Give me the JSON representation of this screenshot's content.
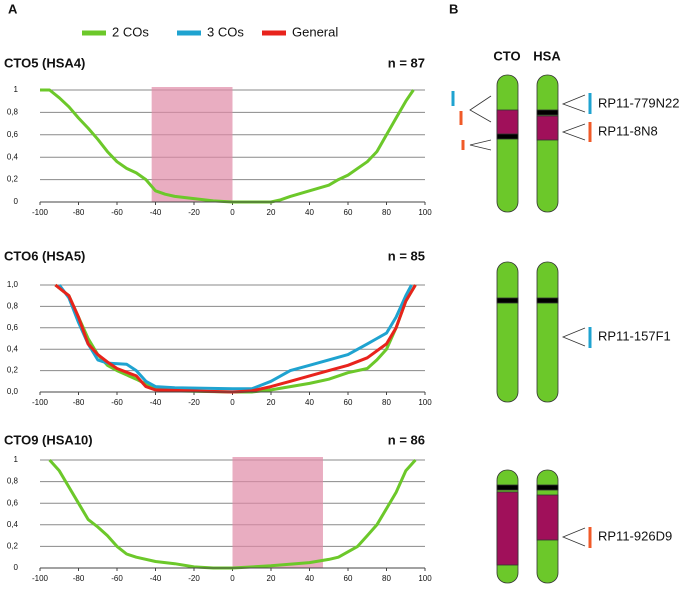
{
  "panel_labels": [
    "A",
    "B"
  ],
  "chart_data": [
    {
      "type": "line",
      "title": "CTO5 (HSA4)",
      "n_label": "n = 87",
      "xlim": [
        -100,
        100
      ],
      "xticks": [
        -100,
        -80,
        -60,
        -40,
        -20,
        0,
        20,
        40,
        60,
        80,
        100
      ],
      "ylim": [
        0,
        1
      ],
      "yticks": [
        0,
        {
          "value": 0.2,
          "label": "0,2"
        },
        {
          "value": 0.4,
          "label": "0,4"
        },
        {
          "value": 0.6,
          "label": "0,6"
        },
        {
          "value": 0.8,
          "label": "0,8"
        },
        1
      ],
      "grid": true,
      "shade": [
        -42,
        0
      ],
      "shade_color": "#e08aa6",
      "series": [
        {
          "name": "2 COs",
          "color": "#6cc82a",
          "x": [
            -100,
            -95,
            -90,
            -85,
            -80,
            -75,
            -70,
            -65,
            -60,
            -55,
            -50,
            -45,
            -40,
            -35,
            -30,
            -20,
            -10,
            0,
            10,
            20,
            25,
            30,
            40,
            50,
            55,
            60,
            70,
            75,
            80,
            85,
            90,
            94
          ],
          "values": [
            1,
            1,
            0.93,
            0.85,
            0.75,
            0.66,
            0.56,
            0.45,
            0.36,
            0.3,
            0.26,
            0.2,
            0.1,
            0.07,
            0.05,
            0.03,
            0.01,
            0,
            0,
            0,
            0.02,
            0.05,
            0.1,
            0.15,
            0.2,
            0.24,
            0.36,
            0.45,
            0.6,
            0.75,
            0.9,
            1
          ]
        }
      ]
    },
    {
      "type": "line",
      "title": "CTO6 (HSA5)",
      "n_label": "n = 85",
      "xlim": [
        -100,
        100
      ],
      "xticks": [
        -100,
        -80,
        -60,
        -40,
        -20,
        0,
        20,
        40,
        60,
        80,
        100
      ],
      "ylim": [
        0,
        1
      ],
      "yticks": [
        {
          "value": 0,
          "label": "0,0"
        },
        {
          "value": 0.2,
          "label": "0,2"
        },
        {
          "value": 0.4,
          "label": "0,4"
        },
        {
          "value": 0.6,
          "label": "0,6"
        },
        {
          "value": 0.8,
          "label": "0,8"
        },
        {
          "value": 1,
          "label": "1,0"
        }
      ],
      "grid": true,
      "series": [
        {
          "name": "2 COs",
          "color": "#6cc82a",
          "x": [
            -92,
            -85,
            -80,
            -75,
            -70,
            -65,
            -60,
            -50,
            -40,
            -30,
            0,
            10,
            20,
            30,
            40,
            50,
            60,
            70,
            75,
            80,
            85,
            90,
            95
          ],
          "values": [
            1,
            0.9,
            0.7,
            0.5,
            0.35,
            0.25,
            0.2,
            0.12,
            0.03,
            0.01,
            0,
            0,
            0.02,
            0.05,
            0.08,
            0.12,
            0.18,
            0.22,
            0.3,
            0.4,
            0.6,
            0.85,
            1
          ]
        },
        {
          "name": "3 COs",
          "color": "#1fa3d0",
          "x": [
            -90,
            -85,
            -80,
            -75,
            -70,
            -65,
            -55,
            -50,
            -45,
            -40,
            -30,
            0,
            10,
            20,
            30,
            40,
            50,
            60,
            70,
            75,
            80,
            85,
            90,
            93
          ],
          "values": [
            1,
            0.88,
            0.65,
            0.45,
            0.3,
            0.27,
            0.26,
            0.2,
            0.1,
            0.05,
            0.04,
            0.03,
            0.03,
            0.1,
            0.2,
            0.25,
            0.3,
            0.35,
            0.45,
            0.5,
            0.55,
            0.7,
            0.9,
            1
          ]
        },
        {
          "name": "General",
          "color": "#e8231c",
          "x": [
            -92,
            -85,
            -80,
            -75,
            -70,
            -65,
            -60,
            -50,
            -45,
            -40,
            0,
            10,
            20,
            30,
            40,
            50,
            60,
            70,
            80,
            85,
            90,
            95
          ],
          "values": [
            1,
            0.9,
            0.7,
            0.45,
            0.35,
            0.28,
            0.22,
            0.15,
            0.05,
            0.02,
            0,
            0.01,
            0.05,
            0.1,
            0.15,
            0.2,
            0.25,
            0.32,
            0.45,
            0.6,
            0.85,
            1
          ]
        }
      ]
    },
    {
      "type": "line",
      "title": "CTO9 (HSA10)",
      "n_label": "n = 86",
      "xlim": [
        -100,
        100
      ],
      "xticks": [
        -100,
        -80,
        -60,
        -40,
        -20,
        0,
        20,
        40,
        60,
        80,
        100
      ],
      "ylim": [
        0,
        1
      ],
      "yticks": [
        0,
        {
          "value": 0.2,
          "label": "0,2"
        },
        {
          "value": 0.4,
          "label": "0,4"
        },
        {
          "value": 0.6,
          "label": "0,6"
        },
        {
          "value": 0.8,
          "label": "0,8"
        },
        1
      ],
      "grid": true,
      "shade": [
        0,
        47
      ],
      "shade_color": "#e08aa6",
      "series": [
        {
          "name": "2 COs",
          "color": "#6cc82a",
          "x": [
            -95,
            -90,
            -85,
            -80,
            -75,
            -70,
            -65,
            -60,
            -55,
            -50,
            -40,
            -30,
            -20,
            -10,
            0,
            20,
            40,
            50,
            55,
            60,
            65,
            70,
            75,
            80,
            85,
            90,
            95
          ],
          "values": [
            1,
            0.9,
            0.75,
            0.6,
            0.45,
            0.38,
            0.3,
            0.2,
            0.13,
            0.1,
            0.06,
            0.04,
            0.01,
            0,
            0,
            0.02,
            0.05,
            0.08,
            0.1,
            0.15,
            0.2,
            0.3,
            0.4,
            0.55,
            0.7,
            0.9,
            1
          ]
        }
      ]
    }
  ],
  "panel_b": {
    "headers": [
      "CTO",
      "HSA"
    ],
    "probes": [
      {
        "label": "RP11-779N22",
        "color": "#1fa3d0"
      },
      {
        "label": "RP11-8N8",
        "color": "#f05a28"
      },
      {
        "label": "RP11-157F1",
        "color": "#1fa3d0"
      },
      {
        "label": "RP11-926D9",
        "color": "#f05a28"
      }
    ]
  }
}
